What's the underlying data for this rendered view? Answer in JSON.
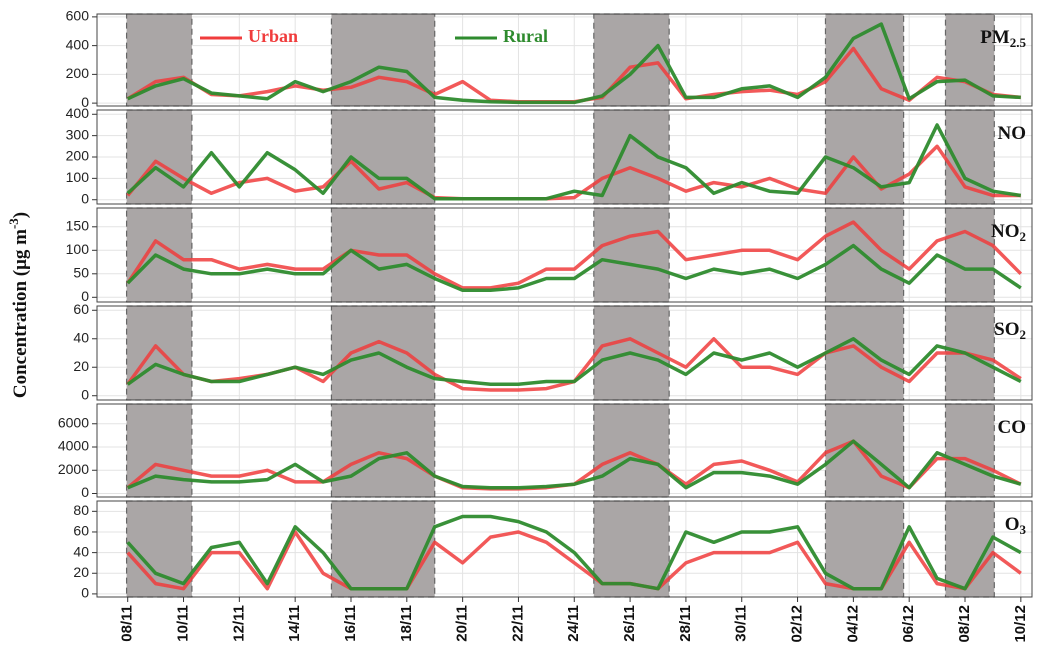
{
  "chart_data": {
    "type": "line",
    "y_label": "Concentration (μg m",
    "y_label_sup": "-3",
    "y_label_end": ")",
    "x": [
      0,
      1,
      2,
      3,
      4,
      5,
      6,
      7,
      8,
      9,
      10,
      11,
      12,
      13,
      14,
      15,
      16,
      17,
      18,
      19,
      20,
      21,
      22,
      23,
      24,
      25,
      26,
      27,
      28,
      29,
      30,
      31,
      32
    ],
    "xlim": [
      -1.1,
      32.4
    ],
    "xticks": [
      {
        "value": 0,
        "label": "08/11"
      },
      {
        "value": 2,
        "label": "10/11"
      },
      {
        "value": 4,
        "label": "12/11"
      },
      {
        "value": 6,
        "label": "14/11"
      },
      {
        "value": 8,
        "label": "16/11"
      },
      {
        "value": 10,
        "label": "18/11"
      },
      {
        "value": 12,
        "label": "20/11"
      },
      {
        "value": 14,
        "label": "22/11"
      },
      {
        "value": 16,
        "label": "24/11"
      },
      {
        "value": 18,
        "label": "26/11"
      },
      {
        "value": 20,
        "label": "28/11"
      },
      {
        "value": 22,
        "label": "30/11"
      },
      {
        "value": 24,
        "label": "02/12"
      },
      {
        "value": 26,
        "label": "04/12"
      },
      {
        "value": 28,
        "label": "06/12"
      },
      {
        "value": 30,
        "label": "08/12"
      },
      {
        "value": 32,
        "label": "10/12"
      }
    ],
    "highlights": [
      [
        -0.04,
        2.3
      ],
      [
        7.3,
        11.0
      ],
      [
        16.7,
        19.4
      ],
      [
        25.0,
        27.8
      ],
      [
        29.3,
        31.05
      ]
    ],
    "grid": true,
    "panels": [
      {
        "label": "PM",
        "label_sub": "2.5",
        "ylim": [
          -20,
          620
        ],
        "yticks": [
          0,
          200,
          400,
          600
        ],
        "series": [
          {
            "name": "Urban",
            "color": "#f03c3c",
            "values": [
              30,
              150,
              180,
              60,
              50,
              80,
              120,
              90,
              110,
              180,
              150,
              60,
              150,
              20,
              10,
              10,
              10,
              40,
              250,
              280,
              30,
              60,
              80,
              90,
              60,
              150,
              380,
              100,
              20,
              180,
              150,
              60,
              40
            ]
          },
          {
            "name": "Rural",
            "color": "#2e8b2e",
            "values": [
              30,
              120,
              170,
              70,
              50,
              30,
              150,
              80,
              150,
              250,
              220,
              40,
              20,
              10,
              5,
              5,
              5,
              50,
              200,
              400,
              40,
              40,
              100,
              120,
              40,
              180,
              450,
              550,
              30,
              150,
              160,
              50,
              40
            ]
          }
        ]
      },
      {
        "label": "NO",
        "ylim": [
          -20,
          420
        ],
        "yticks": [
          0,
          100,
          200,
          300,
          400
        ],
        "series": [
          {
            "name": "Urban",
            "color": "#f03c3c",
            "values": [
              20,
              180,
              100,
              30,
              80,
              100,
              40,
              60,
              180,
              50,
              80,
              10,
              5,
              5,
              5,
              5,
              10,
              100,
              150,
              100,
              40,
              80,
              60,
              100,
              50,
              30,
              200,
              50,
              120,
              250,
              60,
              20,
              20
            ]
          },
          {
            "name": "Rural",
            "color": "#2e8b2e",
            "values": [
              30,
              150,
              60,
              220,
              60,
              220,
              140,
              30,
              200,
              100,
              100,
              5,
              5,
              5,
              5,
              5,
              40,
              20,
              300,
              200,
              150,
              30,
              80,
              40,
              30,
              200,
              150,
              60,
              80,
              350,
              100,
              40,
              20
            ]
          }
        ]
      },
      {
        "label": "NO",
        "label_sub": "2",
        "ylim": [
          -10,
          190
        ],
        "yticks": [
          0,
          50,
          100,
          150
        ],
        "series": [
          {
            "name": "Urban",
            "color": "#f03c3c",
            "values": [
              30,
              120,
              80,
              80,
              60,
              70,
              60,
              60,
              100,
              90,
              90,
              50,
              20,
              20,
              30,
              60,
              60,
              110,
              130,
              140,
              80,
              90,
              100,
              100,
              80,
              130,
              160,
              100,
              60,
              120,
              140,
              110,
              50
            ]
          },
          {
            "name": "Rural",
            "color": "#2e8b2e",
            "values": [
              30,
              90,
              60,
              50,
              50,
              60,
              50,
              50,
              100,
              60,
              70,
              40,
              15,
              15,
              20,
              40,
              40,
              80,
              70,
              60,
              40,
              60,
              50,
              60,
              40,
              70,
              110,
              60,
              30,
              90,
              60,
              60,
              20
            ]
          }
        ]
      },
      {
        "label": "SO",
        "label_sub": "2",
        "ylim": [
          -3,
          63
        ],
        "yticks": [
          0,
          20,
          40,
          60
        ],
        "series": [
          {
            "name": "Urban",
            "color": "#f03c3c",
            "values": [
              8,
              35,
              15,
              10,
              12,
              15,
              20,
              10,
              30,
              38,
              30,
              15,
              5,
              4,
              4,
              5,
              10,
              35,
              40,
              30,
              20,
              40,
              20,
              20,
              15,
              30,
              35,
              20,
              10,
              30,
              30,
              25,
              12
            ]
          },
          {
            "name": "Rural",
            "color": "#2e8b2e",
            "values": [
              8,
              22,
              15,
              10,
              10,
              15,
              20,
              15,
              25,
              30,
              20,
              12,
              10,
              8,
              8,
              10,
              10,
              25,
              30,
              25,
              15,
              30,
              25,
              30,
              20,
              30,
              40,
              25,
              15,
              35,
              30,
              20,
              10
            ]
          }
        ]
      },
      {
        "label": "CO",
        "ylim": [
          -300,
          7700
        ],
        "yticks": [
          0,
          2000,
          4000,
          6000
        ],
        "series": [
          {
            "name": "Urban",
            "color": "#f03c3c",
            "values": [
              500,
              2500,
              2000,
              1500,
              1500,
              2000,
              1000,
              1000,
              2500,
              3500,
              3000,
              1500,
              500,
              400,
              400,
              500,
              800,
              2500,
              3500,
              2500,
              800,
              2500,
              2800,
              2000,
              1000,
              3500,
              4500,
              1500,
              500,
              3000,
              3000,
              2000,
              800
            ]
          },
          {
            "name": "Rural",
            "color": "#2e8b2e",
            "values": [
              500,
              1500,
              1200,
              1000,
              1000,
              1200,
              2500,
              1000,
              1500,
              3000,
              3500,
              1500,
              600,
              500,
              500,
              600,
              800,
              1500,
              3000,
              2500,
              500,
              1800,
              1800,
              1500,
              800,
              2500,
              4500,
              2500,
              500,
              3500,
              2500,
              1500,
              800
            ]
          }
        ]
      },
      {
        "label": "O",
        "label_sub": "3",
        "ylim": [
          -3,
          90
        ],
        "yticks": [
          0,
          20,
          40,
          60,
          80
        ],
        "series": [
          {
            "name": "Urban",
            "color": "#f03c3c",
            "values": [
              40,
              10,
              5,
              40,
              40,
              5,
              60,
              20,
              5,
              5,
              5,
              50,
              30,
              55,
              60,
              50,
              30,
              10,
              10,
              5,
              30,
              40,
              40,
              40,
              50,
              10,
              5,
              5,
              50,
              10,
              5,
              40,
              20
            ]
          },
          {
            "name": "Rural",
            "color": "#2e8b2e",
            "values": [
              50,
              20,
              10,
              45,
              50,
              10,
              65,
              40,
              5,
              5,
              5,
              65,
              75,
              75,
              70,
              60,
              40,
              10,
              10,
              5,
              60,
              50,
              60,
              60,
              65,
              20,
              5,
              5,
              65,
              15,
              5,
              55,
              40
            ]
          }
        ]
      }
    ]
  }
}
